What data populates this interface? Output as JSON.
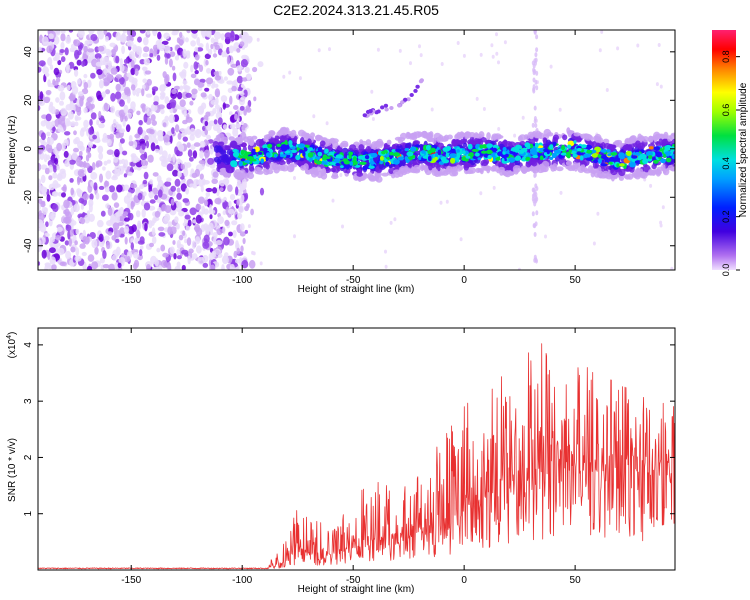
{
  "title": "C2E2.2024.313.21.45.R05",
  "colors": {
    "snr_line": "#e83030",
    "colormap": [
      "#ffffff",
      "#d9b8f5",
      "#9a4bea",
      "#6a00d8",
      "#1a10ff",
      "#00a0ff",
      "#00e0ff",
      "#00f060",
      "#80ff00",
      "#ffff00",
      "#ff8000",
      "#ff0000",
      "#ff3080"
    ]
  },
  "chart_data": [
    {
      "type": "heatmap",
      "title": "C2E2.2024.313.21.45.R05",
      "xlabel": "Height of straight line (km)",
      "ylabel": "Frequency (Hz)",
      "xlim": [
        -192,
        95
      ],
      "ylim": [
        -50,
        49
      ],
      "xticks": [
        "-150",
        "-100",
        "-50",
        "0",
        "50"
      ],
      "xtick_values": [
        -150,
        -100,
        -50,
        0,
        50
      ],
      "yticks": [
        "-40",
        "-20",
        "0",
        "20",
        "40"
      ],
      "ytick_values": [
        -40,
        -20,
        0,
        20,
        40
      ],
      "colorbar": {
        "label": "Normalized spectral amplitude",
        "range": [
          0,
          0.9
        ],
        "ticks": [
          "0.0",
          "0.2",
          "0.4",
          "0.6",
          "0.8"
        ],
        "tick_values": [
          0.0,
          0.2,
          0.4,
          0.6,
          0.8
        ]
      },
      "features": {
        "noise_region_x": [
          -192,
          -97
        ],
        "band_x": [
          -112,
          95
        ],
        "band_center_trace": [
          [
            -110,
            -3
          ],
          [
            -100,
            -4
          ],
          [
            -90,
            -2
          ],
          [
            -80,
            0
          ],
          [
            -70,
            -2
          ],
          [
            -60,
            -4
          ],
          [
            -50,
            -5
          ],
          [
            -40,
            -5
          ],
          [
            -30,
            -3
          ],
          [
            -20,
            -1
          ],
          [
            -10,
            -3
          ],
          [
            0,
            -2
          ],
          [
            10,
            -1
          ],
          [
            20,
            -3
          ],
          [
            30,
            -1
          ],
          [
            40,
            -1
          ],
          [
            50,
            0
          ],
          [
            60,
            -3
          ],
          [
            70,
            -5
          ],
          [
            80,
            -3
          ],
          [
            90,
            -2
          ]
        ],
        "arc_trace": [
          [
            -45,
            14
          ],
          [
            -35,
            17
          ],
          [
            -25,
            20
          ],
          [
            -18,
            30
          ]
        ],
        "vertical_stripe_x": 32
      }
    },
    {
      "type": "line",
      "xlabel": "Height of straight line (km)",
      "ylabel": "SNR (10 * v/v)",
      "y_scale_note": "(x10",
      "y_scale_exp": "4",
      "xlim": [
        -192,
        95
      ],
      "ylim": [
        0,
        4.3
      ],
      "xticks": [
        "-150",
        "-100",
        "-50",
        "0",
        "50"
      ],
      "xtick_values": [
        -150,
        -100,
        -50,
        0,
        50
      ],
      "yticks": [
        "1",
        "2",
        "3",
        "4"
      ],
      "ytick_values": [
        1,
        2,
        3,
        4
      ],
      "series": [
        {
          "envelope_x": [
            -192,
            -90,
            -82,
            -75,
            -70,
            -60,
            -50,
            -40,
            -30,
            -20,
            -10,
            0,
            10,
            20,
            30,
            37,
            40,
            50,
            60,
            70,
            80,
            90,
            95
          ],
          "envelope_mean": [
            0.03,
            0.03,
            0.12,
            0.35,
            0.3,
            0.25,
            0.45,
            0.55,
            0.55,
            0.65,
            0.8,
            1.0,
            1.3,
            1.5,
            1.6,
            1.8,
            1.8,
            1.75,
            1.75,
            1.7,
            1.7,
            1.65,
            1.7
          ],
          "envelope_peak": [
            0.06,
            0.06,
            0.4,
            1.1,
            0.9,
            0.8,
            1.3,
            1.6,
            1.4,
            1.8,
            2.3,
            2.9,
            3.3,
            3.5,
            3.9,
            4.2,
            3.6,
            3.8,
            3.5,
            3.3,
            3.1,
            3.0,
            2.9
          ]
        }
      ]
    }
  ]
}
